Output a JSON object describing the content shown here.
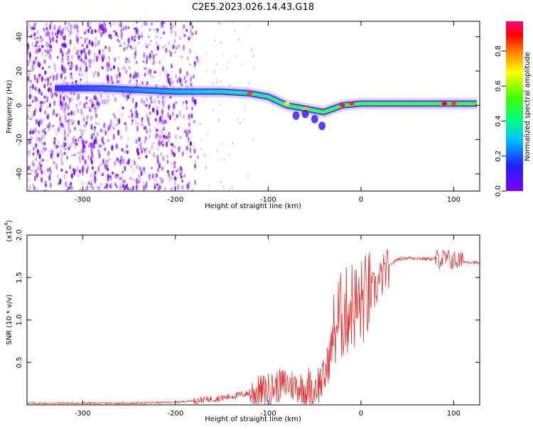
{
  "title": "C2E5.2023.026.14.43.G18",
  "chart_data": [
    {
      "type": "heatmap",
      "xlabel": "Height of straight line (km)",
      "ylabel": "Frequency (Hz)",
      "xlim": [
        -360,
        128
      ],
      "ylim": [
        -50,
        49
      ],
      "xticks": [
        -300,
        -200,
        -100,
        0,
        100
      ],
      "yticks": [
        -40,
        -20,
        0,
        20,
        40
      ],
      "colorbar": {
        "label": "Normalized spectral amplitude",
        "range": [
          0,
          0.97
        ],
        "ticks": [
          "0.0",
          "0.2",
          "0.4",
          "0.6",
          "0.8"
        ],
        "colormap": "rainbow (magenta to red)"
      },
      "description_points": [
        {
          "x": -330,
          "y": 10
        },
        {
          "x": -280,
          "y": 10
        },
        {
          "x": -240,
          "y": 9
        },
        {
          "x": -200,
          "y": 8
        },
        {
          "x": -175,
          "y": 8
        },
        {
          "x": -150,
          "y": 8
        },
        {
          "x": -120,
          "y": 7
        },
        {
          "x": -100,
          "y": 5
        },
        {
          "x": -80,
          "y": 0
        },
        {
          "x": -60,
          "y": -2
        },
        {
          "x": -40,
          "y": -4
        },
        {
          "x": -20,
          "y": 0
        },
        {
          "x": 0,
          "y": 1
        },
        {
          "x": 25,
          "y": 1
        },
        {
          "x": 50,
          "y": 1
        },
        {
          "x": 75,
          "y": 1
        },
        {
          "x": 100,
          "y": 1
        },
        {
          "x": 125,
          "y": 1
        }
      ]
    },
    {
      "type": "line",
      "xlabel": "Height of straight line (km)",
      "ylabel": "SNR (10 * v/v)",
      "yscale_label": "(x10",
      "yscale_exp": "4",
      "xlim": [
        -360,
        128
      ],
      "ylim": [
        0,
        2.0
      ],
      "xticks": [
        -300,
        -200,
        -100,
        0,
        100
      ],
      "yticks": [
        "0.5",
        "1.0",
        "1.5",
        "2.0"
      ],
      "series": [
        {
          "color": "#e83030",
          "x": [
            -360,
            -300,
            -250,
            -200,
            -180,
            -150,
            -130,
            -110,
            -100,
            -90,
            -80,
            -70,
            -60,
            -50,
            -40,
            -35,
            -30,
            -25,
            -20,
            -15,
            -10,
            -5,
            0,
            5,
            10,
            15,
            20,
            25,
            30,
            35,
            40,
            50,
            60,
            70,
            80,
            90,
            100,
            110,
            120,
            128
          ],
          "y": [
            0.02,
            0.02,
            0.02,
            0.03,
            0.05,
            0.08,
            0.12,
            0.15,
            0.18,
            0.22,
            0.25,
            0.22,
            0.2,
            0.22,
            0.3,
            0.5,
            0.8,
            1.0,
            1.05,
            1.1,
            1.2,
            1.15,
            1.2,
            1.25,
            1.3,
            1.35,
            1.45,
            1.55,
            1.62,
            1.68,
            1.72,
            1.73,
            1.73,
            1.72,
            1.72,
            1.72,
            1.7,
            1.69,
            1.68,
            1.67
          ]
        }
      ]
    }
  ]
}
